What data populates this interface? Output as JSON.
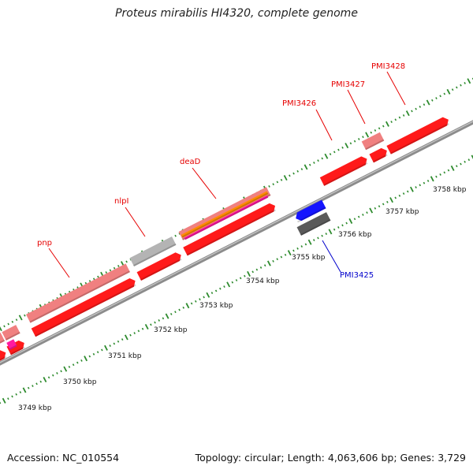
{
  "title": "Proteus mirabilis HI4320, complete genome",
  "footer": {
    "accession": "Accession: NC_010554",
    "summary": "Topology: circular; Length: 4,063,606 bp; Genes: 3,729"
  },
  "colors": {
    "backbone": "#8c8c8c",
    "tick": "#2e8b2e",
    "gene_red": "#ff1a1a",
    "gene_pink": "#f08080",
    "gene_gray": "#b4b4b4",
    "gene_blue": "#1515ff",
    "gene_darkgray": "#5a5a5a",
    "gene_orange": "#ff8c00",
    "gene_magenta": "#ff1aa0",
    "label_red": "#e60000",
    "label_blue": "#0000cc"
  },
  "ruler": {
    "labels": [
      "3749 kbp",
      "3750 kbp",
      "3751 kbp",
      "3752 kbp",
      "3753 kbp",
      "3754 kbp",
      "3755 kbp",
      "3756 kbp",
      "3757 kbp",
      "3758 kbp"
    ]
  },
  "gene_labels": [
    {
      "name": "pnp",
      "color": "label_red"
    },
    {
      "name": "nlpI",
      "color": "label_red"
    },
    {
      "name": "deaD",
      "color": "label_red"
    },
    {
      "name": "PMI3426",
      "color": "label_red"
    },
    {
      "name": "PMI3427",
      "color": "label_red"
    },
    {
      "name": "PMI3428",
      "color": "label_red"
    },
    {
      "name": "PMI3425",
      "color": "label_blue"
    }
  ]
}
